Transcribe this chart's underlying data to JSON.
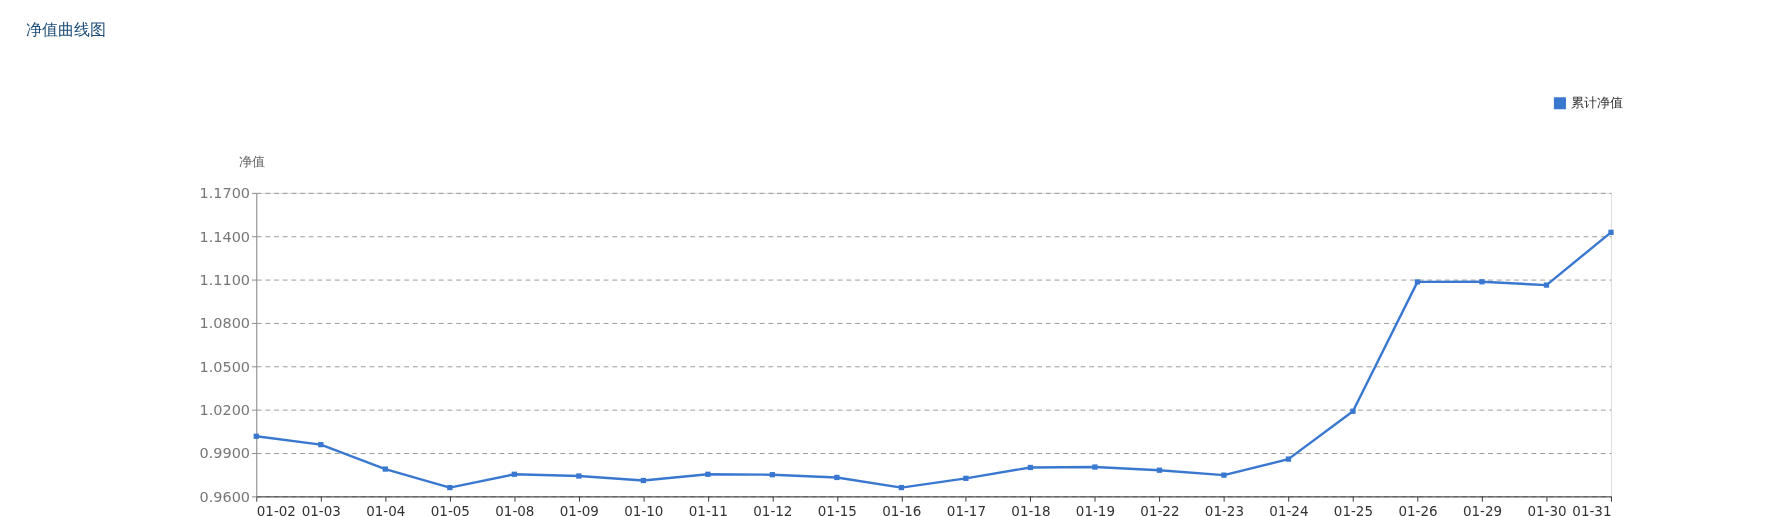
{
  "chart_data": {
    "type": "line",
    "title": "净值曲线图",
    "ylabel": "净值",
    "categories": [
      "01-02",
      "01-03",
      "01-04",
      "01-05",
      "01-08",
      "01-09",
      "01-10",
      "01-11",
      "01-12",
      "01-15",
      "01-16",
      "01-17",
      "01-18",
      "01-19",
      "01-22",
      "01-23",
      "01-24",
      "01-25",
      "01-26",
      "01-29",
      "01-30",
      "01-31"
    ],
    "series": [
      {
        "name": "累计净值",
        "color": "#3a78d0",
        "values": [
          1.0016,
          0.9958,
          0.9789,
          0.9661,
          0.9753,
          0.9741,
          0.971,
          0.9753,
          0.975,
          0.9731,
          0.9661,
          0.9725,
          0.98,
          0.9803,
          0.9781,
          0.9747,
          0.9858,
          1.0189,
          1.1084,
          1.1085,
          1.1062,
          1.1427
        ]
      }
    ],
    "ylim": [
      0.96,
      1.17
    ],
    "yticks": [
      {
        "value": 0.96,
        "label": "0.9600"
      },
      {
        "value": 0.99,
        "label": "0.9900"
      },
      {
        "value": 1.02,
        "label": "1.0200"
      },
      {
        "value": 1.05,
        "label": "1.0500"
      },
      {
        "value": 1.08,
        "label": "1.0800"
      },
      {
        "value": 1.11,
        "label": "1.1100"
      },
      {
        "value": 1.14,
        "label": "1.1400"
      },
      {
        "value": 1.17,
        "label": "1.1700"
      }
    ],
    "grid": "y",
    "legend": "top right",
    "marker": "square",
    "line_style": "solid"
  }
}
